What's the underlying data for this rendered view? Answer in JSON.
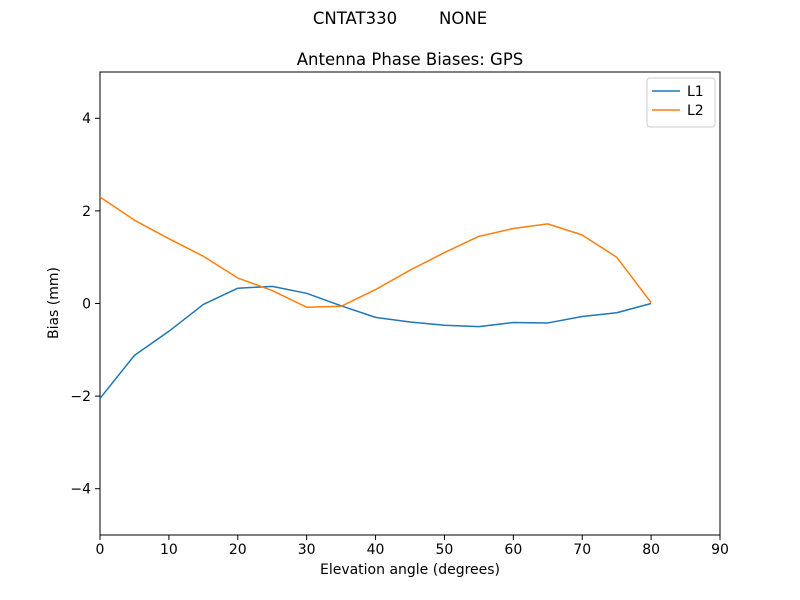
{
  "figure": {
    "suptitle": "CNTAT330        NONE",
    "background_color": "#ffffff"
  },
  "chart_data": {
    "type": "line",
    "suptitle": "CNTAT330        NONE",
    "title": "Antenna Phase Biases: GPS",
    "xlabel": "Elevation angle (degrees)",
    "ylabel": "Bias (mm)",
    "xlim": [
      0,
      90
    ],
    "ylim": [
      -5,
      5
    ],
    "xticks": [
      0,
      10,
      20,
      30,
      40,
      50,
      60,
      70,
      80,
      90
    ],
    "xtick_labels": [
      "0",
      "10",
      "20",
      "30",
      "40",
      "50",
      "60",
      "70",
      "80",
      "90"
    ],
    "yticks": [
      -4,
      -2,
      0,
      2,
      4
    ],
    "ytick_labels": [
      "−4",
      "−2",
      "0",
      "2",
      "4"
    ],
    "grid": false,
    "axis_color": "#000000",
    "legend": {
      "position": "upper right",
      "border_color": "#cccccc",
      "background_color": "#ffffff",
      "entries": [
        "L1",
        "L2"
      ]
    },
    "x": [
      0,
      5,
      10,
      15,
      20,
      25,
      30,
      35,
      40,
      45,
      50,
      55,
      60,
      65,
      70,
      75,
      80
    ],
    "series": [
      {
        "name": "L1",
        "color": "#1f77b4",
        "values": [
          -2.05,
          -1.12,
          -0.6,
          -0.02,
          0.33,
          0.37,
          0.22,
          -0.05,
          -0.3,
          -0.4,
          -0.47,
          -0.5,
          -0.41,
          -0.42,
          -0.28,
          -0.2,
          0.0
        ]
      },
      {
        "name": "L2",
        "color": "#ff7f0e",
        "values": [
          2.3,
          1.8,
          1.4,
          1.02,
          0.55,
          0.28,
          -0.08,
          -0.06,
          0.3,
          0.72,
          1.1,
          1.45,
          1.62,
          1.72,
          1.48,
          1.0,
          0.02
        ]
      }
    ]
  }
}
